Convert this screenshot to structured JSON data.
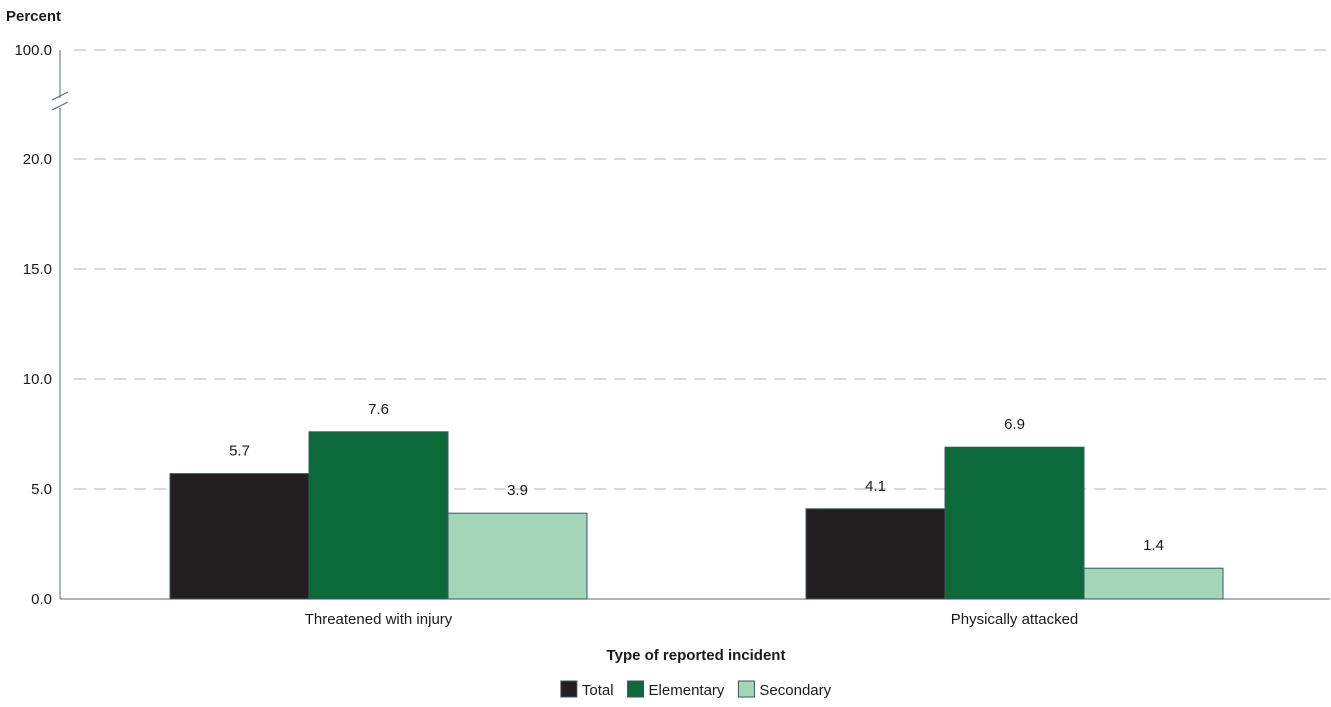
{
  "chart_data": {
    "type": "bar",
    "ylabel": "Percent",
    "xlabel": "Type of reported incident",
    "categories": [
      "Threatened with injury",
      "Physically attacked"
    ],
    "series": [
      {
        "name": "Total",
        "values": [
          5.7,
          4.1
        ],
        "color": "#231f20"
      },
      {
        "name": "Elementary",
        "values": [
          7.6,
          6.9
        ],
        "color": "#0c6a3a"
      },
      {
        "name": "Secondary",
        "values": [
          3.9,
          1.4
        ],
        "color": "#a3d6b9"
      }
    ],
    "y_ticks": [
      "0.0",
      "5.0",
      "10.0",
      "15.0",
      "20.0",
      "100.0"
    ],
    "ylim": [
      0,
      20
    ],
    "y_axis_break": "20.0 to 100.0",
    "grid": true,
    "grid_style": "dashed",
    "legend_position": "bottom-center",
    "data_labels": [
      [
        "5.7",
        "7.6",
        "3.9"
      ],
      [
        "4.1",
        "6.9",
        "1.4"
      ]
    ]
  }
}
